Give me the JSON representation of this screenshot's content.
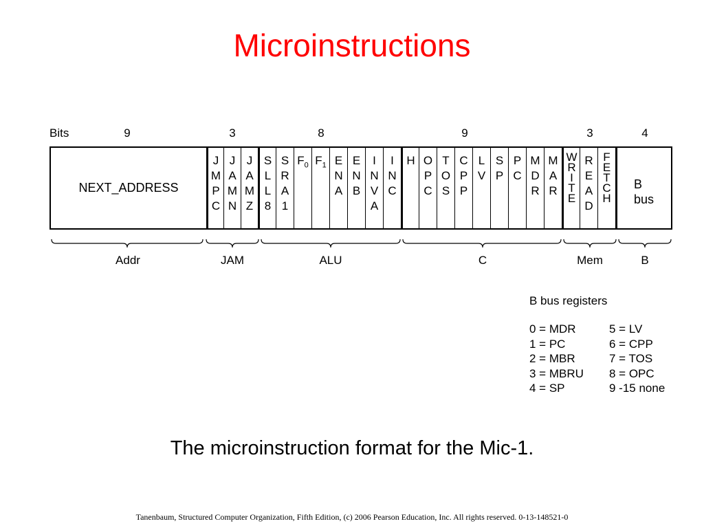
{
  "title": "Microinstructions",
  "bits_label": "Bits",
  "bit_counts": [
    "9",
    "3",
    "8",
    "9",
    "3",
    "4"
  ],
  "fields": {
    "next_address": "NEXT_ADDRESS",
    "jmpc": "J\nM\nP\nC",
    "jamn": "J\nA\nM\nN",
    "jamz": "J\nA\nM\nZ",
    "sll8": "S\nL\nL\n8",
    "sra1": "S\nR\nA\n1",
    "f0": "F0",
    "f1": "F1",
    "ena": "E\nN\nA",
    "enb": "E\nN\nB",
    "inva": "I\nN\nV\nA",
    "inc": "I\nN\nC",
    "h": "H",
    "opc": "O\nP\nC",
    "tos": "T\nO\nS",
    "cpp": "C\nP\nP",
    "lv": "L\nV",
    "sp": "S\nP",
    "pc": "P\nC",
    "mdr": "M\nD\nR",
    "mar": "M\nA\nR",
    "write": "W\nR\nI\nT\nE",
    "read": "R\nE\nA\nD",
    "fetch": "F\nE\nT\nC\nH",
    "bbus": "B\nbus"
  },
  "groups": [
    "Addr",
    "JAM",
    "ALU",
    "C",
    "Mem",
    "B"
  ],
  "registers": {
    "title": "B bus registers",
    "left": [
      "0 = MDR",
      "1 = PC",
      "2 = MBR",
      "3 = MBRU",
      "4 = SP"
    ],
    "right": [
      "5 = LV",
      "6 = CPP",
      "7 = TOS",
      "8 = OPC",
      "9 -15 none"
    ]
  },
  "caption": "The microinstruction format for the Mic-1.",
  "footer": "Tanenbaum, Structured Computer Organization, Fifth Edition, (c) 2006 Pearson Education, Inc. All rights reserved. 0-13-148521-0",
  "colors": {
    "title": "#ff0000",
    "text": "#000000",
    "background": "#ffffff"
  }
}
